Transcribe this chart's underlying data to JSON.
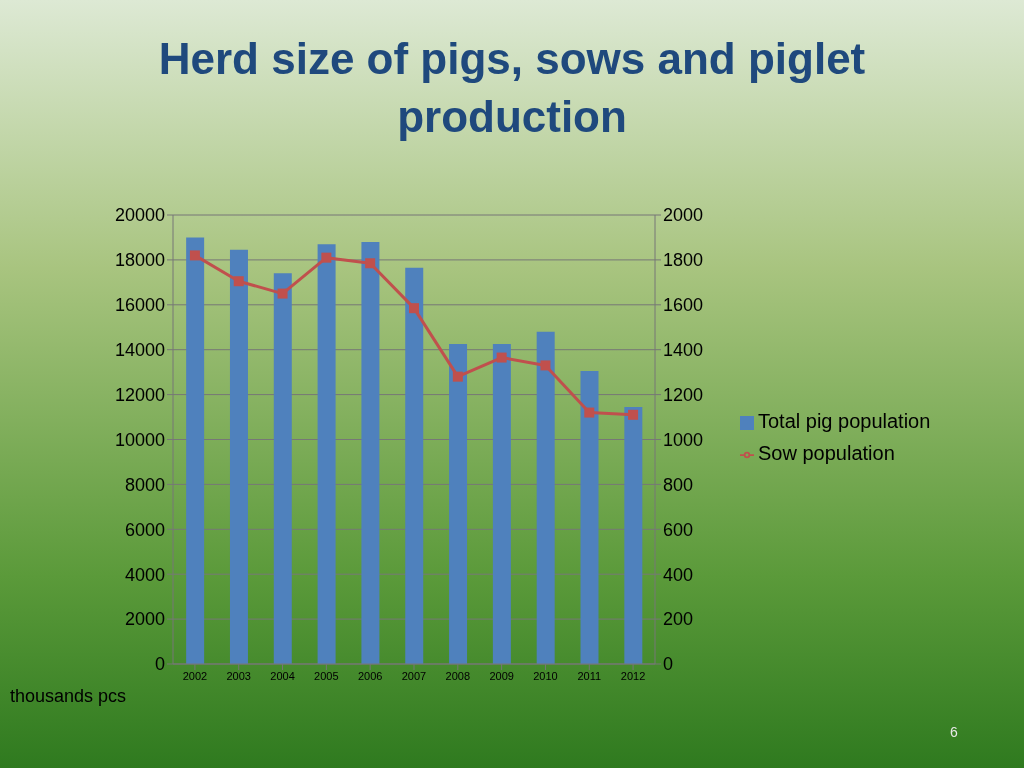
{
  "chart_data": {
    "type": "bar",
    "title": "Herd size of pigs, sows and piglet production",
    "categories": [
      "2002",
      "2003",
      "2004",
      "2005",
      "2006",
      "2007",
      "2008",
      "2009",
      "2010",
      "2011",
      "2012"
    ],
    "series": [
      {
        "name": "Total pig population",
        "color": "#4f81bd",
        "values": [
          19000,
          18450,
          17400,
          18700,
          18800,
          17650,
          14250,
          14250,
          14800,
          13050,
          11450
        ]
      },
      {
        "name": "Sow population",
        "type": "line",
        "axis": "y2",
        "color": "#c0504d",
        "marker": "square",
        "values": [
          1820,
          1705,
          1650,
          1810,
          1785,
          1585,
          1280,
          1365,
          1330,
          1120,
          1110
        ]
      }
    ],
    "ylim": [
      0,
      20000
    ],
    "yticks": [
      0,
      2000,
      4000,
      6000,
      8000,
      10000,
      12000,
      14000,
      16000,
      18000,
      20000
    ],
    "y2lim": [
      0,
      2000
    ],
    "y2ticks": [
      0,
      200,
      400,
      600,
      800,
      1000,
      1200,
      1400,
      1600,
      1800,
      2000
    ],
    "grid": "y",
    "legend": "right",
    "annotations": [
      "thousands pcs",
      "6"
    ]
  }
}
